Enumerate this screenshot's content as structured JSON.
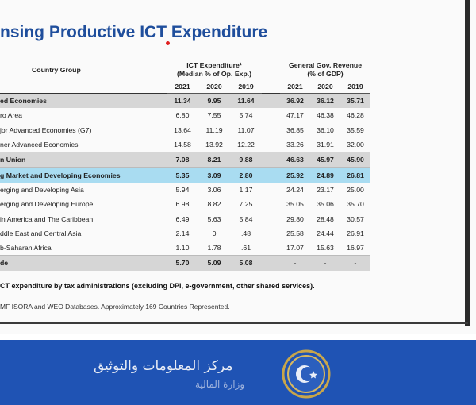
{
  "title": "nsing Productive ICT Expenditure",
  "table": {
    "country_group_header": "Country Group",
    "ict_header": "ICT Expenditure¹",
    "ict_subheader": "(Median % of Op. Exp.)",
    "rev_header": "General Gov. Revenue",
    "rev_subheader": "(% of GDP)",
    "years": [
      "2021",
      "2020",
      "2019",
      "2021",
      "2020",
      "2019"
    ],
    "rows": [
      {
        "label": "ed Economies",
        "values": [
          "11.34",
          "9.95",
          "11.64",
          "36.92",
          "36.12",
          "35.71"
        ],
        "style": "grey"
      },
      {
        "label": "ro Area",
        "values": [
          "6.80",
          "7.55",
          "5.74",
          "47.17",
          "46.38",
          "46.28"
        ],
        "style": "normal"
      },
      {
        "label": "jor Advanced Economies (G7)",
        "values": [
          "13.64",
          "11.19",
          "11.07",
          "36.85",
          "36.10",
          "35.59"
        ],
        "style": "normal"
      },
      {
        "label": "ner Advanced Economies",
        "values": [
          "14.58",
          "13.92",
          "12.22",
          "33.26",
          "31.91",
          "32.00"
        ],
        "style": "normal"
      },
      {
        "label": "n Union",
        "values": [
          "7.08",
          "8.21",
          "9.88",
          "46.63",
          "45.97",
          "45.90"
        ],
        "style": "grey"
      },
      {
        "label": "g Market and Developing Economies",
        "values": [
          "5.35",
          "3.09",
          "2.80",
          "25.92",
          "24.89",
          "26.81"
        ],
        "style": "blue"
      },
      {
        "label": "erging and Developing Asia",
        "values": [
          "5.94",
          "3.06",
          "1.17",
          "24.24",
          "23.17",
          "25.00"
        ],
        "style": "normal"
      },
      {
        "label": "erging and Developing Europe",
        "values": [
          "6.98",
          "8.82",
          "7.25",
          "35.05",
          "35.06",
          "35.70"
        ],
        "style": "normal"
      },
      {
        "label": "in America and The Caribbean",
        "values": [
          "6.49",
          "5.63",
          "5.84",
          "29.80",
          "28.48",
          "30.57"
        ],
        "style": "normal"
      },
      {
        "label": "ddle East and Central Asia",
        "values": [
          "2.14",
          "0",
          ".48",
          "25.58",
          "24.44",
          "26.91"
        ],
        "style": "normal"
      },
      {
        "label": "b-Saharan Africa",
        "values": [
          "1.10",
          "1.78",
          ".61",
          "17.07",
          "15.63",
          "16.97"
        ],
        "style": "normal"
      },
      {
        "label": "de",
        "values": [
          "5.70",
          "5.09",
          "5.08",
          "-",
          "-",
          "-"
        ],
        "style": "grey"
      }
    ]
  },
  "note": "CT expenditure by tax administrations (excluding DPI, e-government, other shared services).",
  "source": "MF ISORA and WEO Databases.  Approximately 169 Countries Represented.",
  "footer": {
    "org_name": "مركز المعلومات والتوثيق",
    "org_sub": "وزارة المالية"
  },
  "colors": {
    "title": "#1f4e9c",
    "highlight_row": "#a9dcf1",
    "grey_row": "#d6d6d6",
    "footer_band": "#1f53b4"
  }
}
